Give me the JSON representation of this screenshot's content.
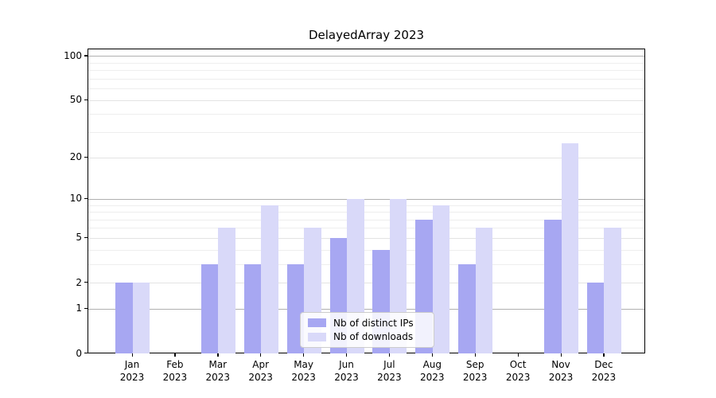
{
  "chart_data": {
    "type": "bar",
    "title": "DelayedArray 2023",
    "categories": [
      "Jan",
      "Feb",
      "Mar",
      "Apr",
      "May",
      "Jun",
      "Jul",
      "Aug",
      "Sep",
      "Oct",
      "Nov",
      "Dec"
    ],
    "year_label": "2023",
    "series": [
      {
        "name": "Nb of distinct IPs",
        "color": "#a7a7f2",
        "values": [
          2,
          0,
          3,
          3,
          3,
          5,
          4,
          7,
          3,
          0,
          7,
          2
        ]
      },
      {
        "name": "Nb of downloads",
        "color": "#d9d9f9",
        "values": [
          2,
          0,
          6,
          9,
          6,
          10,
          10,
          9,
          6,
          0,
          25,
          6
        ]
      }
    ],
    "y_axis": {
      "scale": "log1p",
      "min": 0,
      "max": 111,
      "ticks": [
        0,
        1,
        2,
        5,
        10,
        20,
        50,
        100
      ],
      "major_gridlines": [
        1,
        10,
        100
      ],
      "minor_gridlines": [
        3,
        4,
        6,
        7,
        8,
        9,
        30,
        40,
        60,
        70,
        80,
        90
      ]
    },
    "legend": {
      "position": "lower center"
    },
    "grid": true
  }
}
